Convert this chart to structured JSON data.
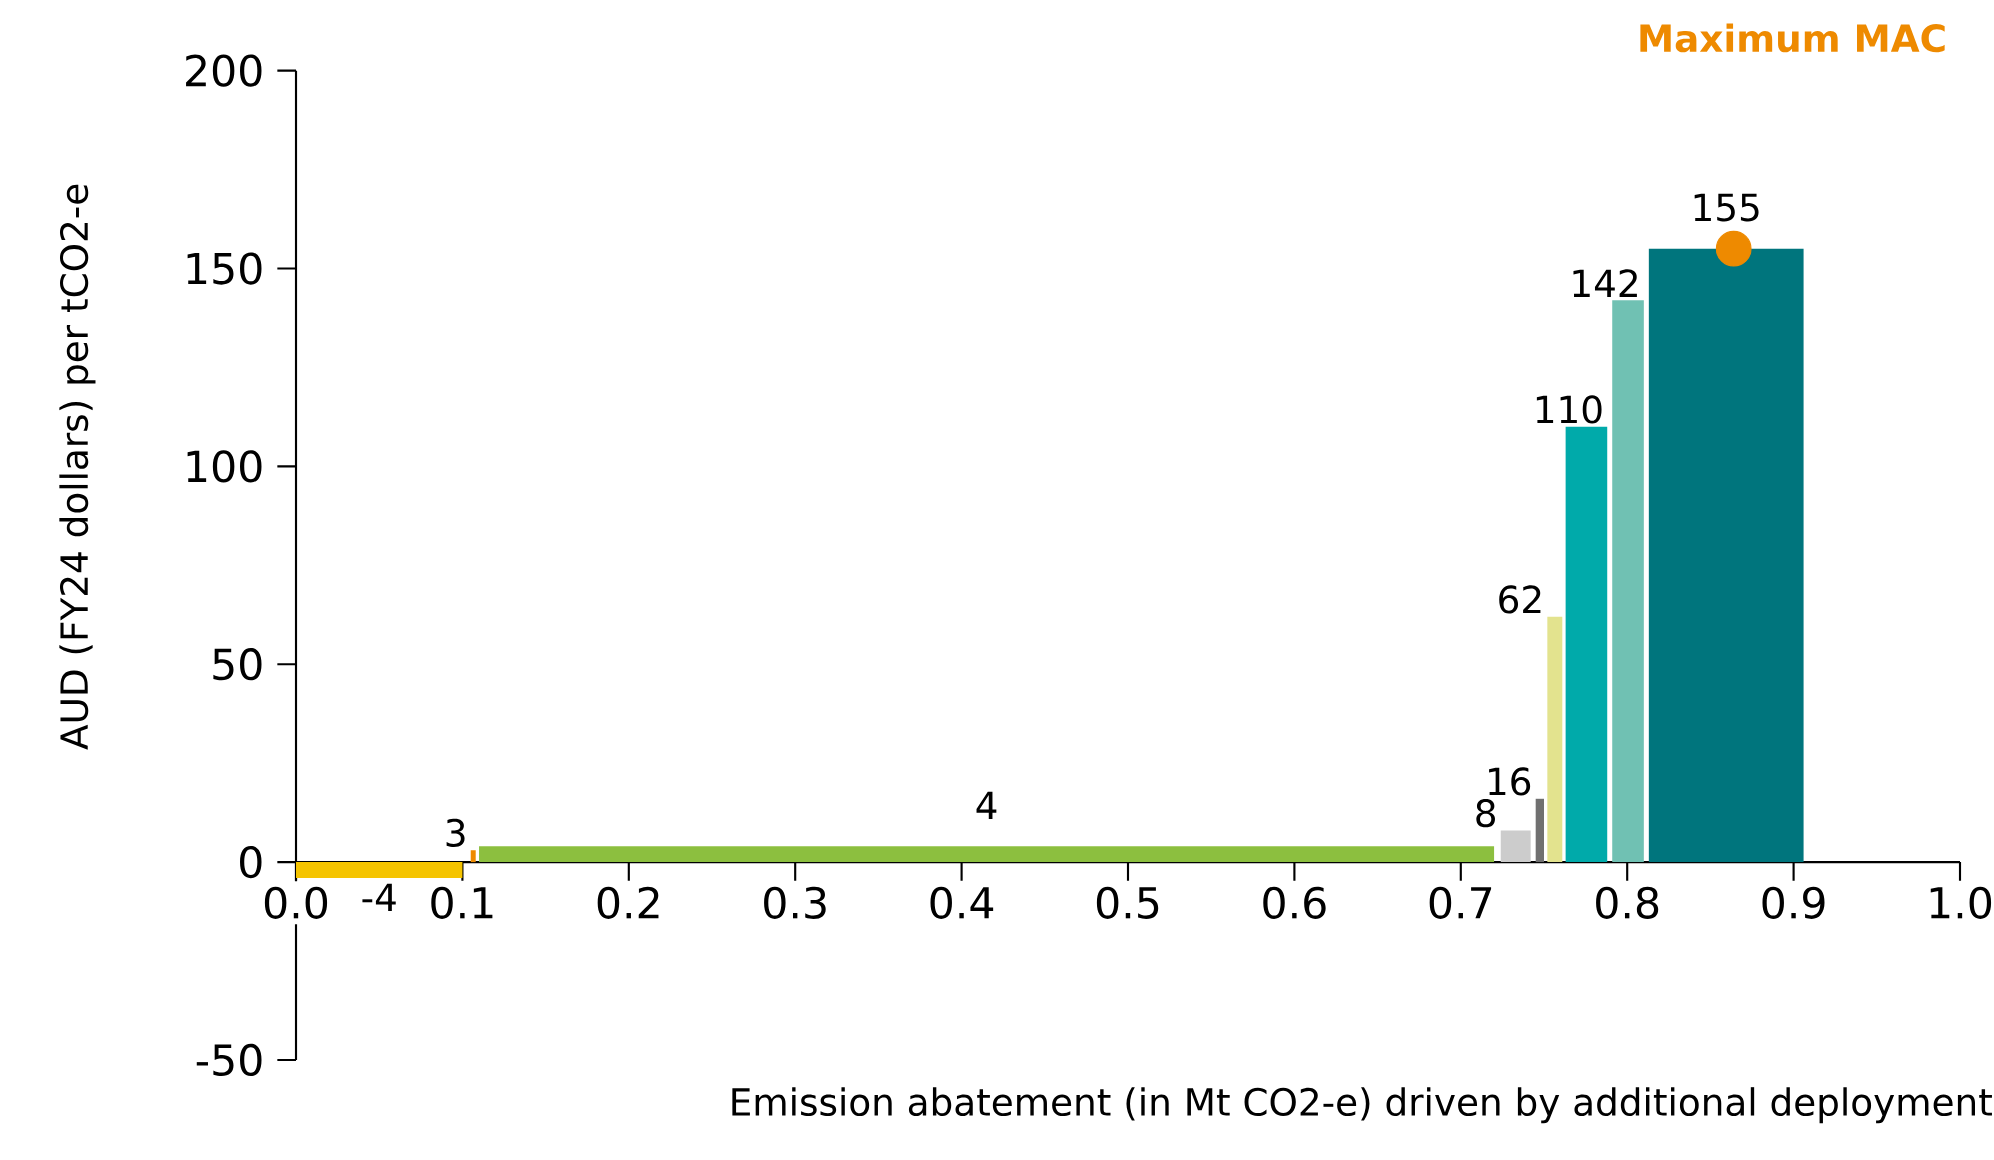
{
  "chart_data": {
    "type": "histogram",
    "xlabel": "Emission abatement (in Mt CO2-e) driven by additional deployment",
    "ylabel": "AUD (FY24 dollars) per tCO2-e",
    "xlim": [
      0,
      1
    ],
    "ylim": [
      -50,
      200
    ],
    "xticks": [
      {
        "value": 0,
        "label": "0.0"
      },
      {
        "value": 0.1,
        "label": "0.1"
      },
      {
        "value": 0.2,
        "label": "0.2"
      },
      {
        "value": 0.3,
        "label": "0.3"
      },
      {
        "value": 0.4,
        "label": "0.4"
      },
      {
        "value": 0.5,
        "label": "0.5"
      },
      {
        "value": 0.6,
        "label": "0.6"
      },
      {
        "value": 0.7,
        "label": "0.7"
      },
      {
        "value": 0.8,
        "label": "0.8"
      },
      {
        "value": 0.9,
        "label": "0.9"
      },
      {
        "value": 1.0,
        "label": "1.0"
      }
    ],
    "yticks": [
      -50,
      0,
      50,
      100,
      150,
      200
    ],
    "legend": "top right",
    "series": [
      {
        "type": "histogram",
        "bins": [
          0,
          0.1,
          0.105,
          0.108,
          0.11,
          0.72,
          0.724,
          0.742,
          0.745,
          0.75,
          0.752,
          0.761,
          0.763,
          0.788,
          0.791,
          0.81,
          0.813,
          0.906
        ],
        "values": [
          -4,
          null,
          3,
          null,
          4,
          null,
          8,
          null,
          16,
          null,
          62,
          null,
          110,
          null,
          142,
          null,
          155
        ],
        "value_labels": [
          "-4",
          null,
          "3",
          null,
          "4",
          null,
          "8",
          null,
          "16",
          null,
          "62",
          null,
          "110",
          null,
          "142",
          null,
          "155"
        ],
        "colors": [
          "#f5c400",
          null,
          "#ee8a00",
          null,
          "#8cbf3f",
          null,
          "#cccccc",
          null,
          "#707070",
          null,
          "#e3e38e",
          null,
          "#00aaaa",
          null,
          "#70c1b3",
          null,
          "#00757d"
        ]
      },
      {
        "type": "scatter",
        "name": "Maximum MAC",
        "color": "#ee8a00",
        "marker": "circle",
        "x": [
          0.864
        ],
        "values": [
          155
        ]
      }
    ]
  }
}
